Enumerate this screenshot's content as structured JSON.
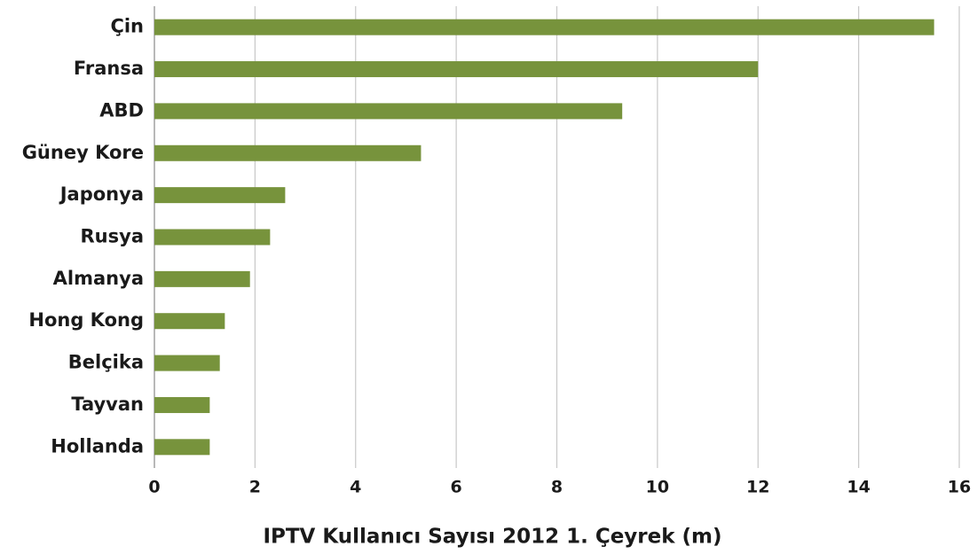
{
  "chart_data": {
    "type": "bar",
    "orientation": "horizontal",
    "x_axis_label": "IPTV Kullanıcı Sayısı 2012 1. Çeyrek (m)",
    "categories": [
      "Çin",
      "Fransa",
      "ABD",
      "Güney Kore",
      "Japonya",
      "Rusya",
      "Almanya",
      "Hong Kong",
      "Belçika",
      "Tayvan",
      "Hollanda"
    ],
    "values": [
      15.5,
      12,
      9.3,
      5.3,
      2.6,
      2.3,
      1.9,
      1.4,
      1.3,
      1.1,
      1.1
    ],
    "color": "#77933c",
    "xlim": [
      0,
      16
    ],
    "xticks": [
      0,
      2,
      4,
      6,
      8,
      10,
      12,
      14,
      16
    ],
    "grid": true
  }
}
